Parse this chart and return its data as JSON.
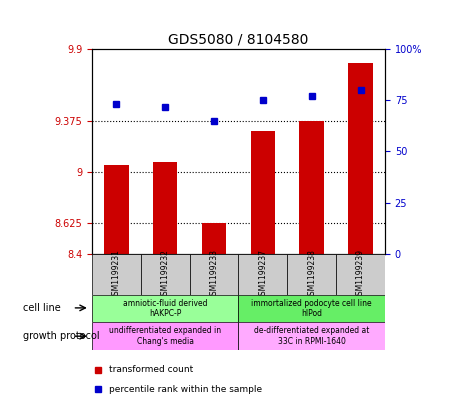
{
  "title": "GDS5080 / 8104580",
  "samples": [
    "GSM1199231",
    "GSM1199232",
    "GSM1199233",
    "GSM1199237",
    "GSM1199238",
    "GSM1199239"
  ],
  "bar_values": [
    9.05,
    9.07,
    8.625,
    9.3,
    9.375,
    9.8
  ],
  "dot_values": [
    73,
    72,
    65,
    75,
    77,
    80
  ],
  "ylim_left": [
    8.4,
    9.9
  ],
  "ylim_right": [
    0,
    100
  ],
  "yticks_left": [
    8.4,
    8.625,
    9.0,
    9.375,
    9.9
  ],
  "ytick_labels_left": [
    "8.4",
    "8.625",
    "9",
    "9.375",
    "9.9"
  ],
  "yticks_right": [
    0,
    25,
    50,
    75,
    100
  ],
  "ytick_labels_right": [
    "0",
    "25",
    "50",
    "75",
    "100%"
  ],
  "hlines": [
    8.625,
    9.0,
    9.375
  ],
  "bar_color": "#cc0000",
  "dot_color": "#0000cc",
  "bar_bottom": 8.4,
  "cell_line_groups": [
    {
      "label": "amniotic-fluid derived\nhAKPC-P",
      "start": 0,
      "end": 3,
      "color": "#99ff99"
    },
    {
      "label": "immortalized podocyte cell line\nhIPod",
      "start": 3,
      "end": 6,
      "color": "#66ee66"
    }
  ],
  "growth_protocol_groups": [
    {
      "label": "undifferentiated expanded in\nChang's media",
      "start": 0,
      "end": 3,
      "color": "#ff99ff"
    },
    {
      "label": "de-differentiated expanded at\n33C in RPMI-1640",
      "start": 3,
      "end": 6,
      "color": "#ffaaff"
    }
  ],
  "cell_line_label": "cell line",
  "growth_protocol_label": "growth protocol",
  "legend_bar_label": "transformed count",
  "legend_dot_label": "percentile rank within the sample",
  "sample_box_color": "#cccccc",
  "left_axis_color": "#cc0000",
  "right_axis_color": "#0000cc"
}
